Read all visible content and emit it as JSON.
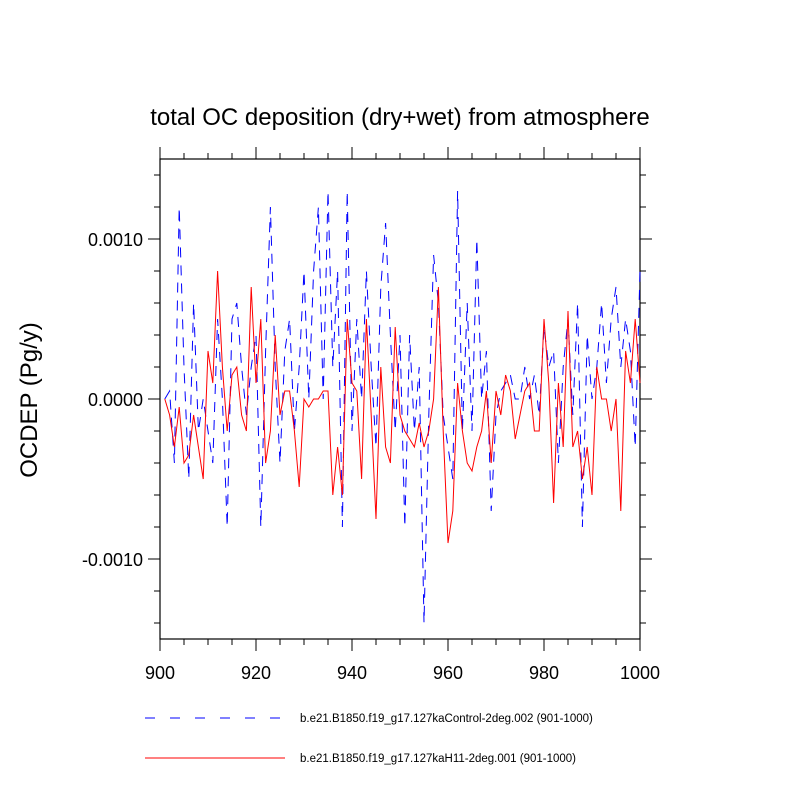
{
  "chart_data": {
    "type": "line",
    "title": "total OC deposition (dry+wet) from atmosphere",
    "xlabel": "",
    "ylabel": "OCDEP  (Pg/y)",
    "xlim": [
      900,
      1000
    ],
    "ylim": [
      -0.0015,
      0.0015
    ],
    "x_ticks": [
      900,
      920,
      940,
      960,
      980,
      1000
    ],
    "x_tick_labels": [
      "900",
      "920",
      "940",
      "960",
      "980",
      "1000"
    ],
    "y_ticks": [
      -0.001,
      0.0,
      0.001
    ],
    "y_tick_labels": [
      "-0.0010",
      "0.0000",
      "0.0010"
    ],
    "x": [
      901,
      902,
      903,
      904,
      905,
      906,
      907,
      908,
      909,
      910,
      911,
      912,
      913,
      914,
      915,
      916,
      917,
      918,
      919,
      920,
      921,
      922,
      923,
      924,
      925,
      926,
      927,
      928,
      929,
      930,
      931,
      932,
      933,
      934,
      935,
      936,
      937,
      938,
      939,
      940,
      941,
      942,
      943,
      944,
      945,
      946,
      947,
      948,
      949,
      950,
      951,
      952,
      953,
      954,
      955,
      956,
      957,
      958,
      959,
      960,
      961,
      962,
      963,
      964,
      965,
      966,
      967,
      968,
      969,
      970,
      971,
      972,
      973,
      974,
      975,
      976,
      977,
      978,
      979,
      980,
      981,
      982,
      983,
      984,
      985,
      986,
      987,
      988,
      989,
      990,
      991,
      992,
      993,
      994,
      995,
      996,
      997,
      998,
      999,
      1000
    ],
    "series": [
      {
        "name": "b.e21.B1850.f19_g17.127kaControl-2deg.002 (901-1000)",
        "color": "#0000ff",
        "style": "dashed",
        "values": [
          0.0,
          5e-05,
          -0.0004,
          0.0012,
          0.0002,
          -0.0005,
          0.0006,
          -0.0002,
          0.0,
          -0.0002,
          -0.0004,
          0.0005,
          0.0,
          -0.0008,
          0.0005,
          0.0006,
          0.0002,
          -0.0001,
          0.0002,
          0.0004,
          -0.0008,
          0.0003,
          0.0012,
          0.0002,
          -0.0004,
          0.0003,
          0.0005,
          -0.0002,
          0.0002,
          0.0008,
          0.0,
          0.0008,
          0.0012,
          0.0,
          0.0013,
          0.0002,
          0.0008,
          -0.0008,
          0.0013,
          -0.0002,
          0.0005,
          0.0,
          0.0008,
          0.0002,
          -0.0003,
          0.0007,
          0.0011,
          0.0004,
          -0.0002,
          0.0004,
          -0.0008,
          0.0004,
          -0.0002,
          0.0002,
          -0.0014,
          -0.0001,
          0.0009,
          0.0006,
          -0.0001,
          -0.0003,
          -0.0005,
          0.0013,
          -0.0002,
          0.0006,
          -0.0002,
          0.001,
          0.0,
          0.0003,
          -0.0007,
          -0.0001,
          5e-05,
          0.0001,
          0.00015,
          0.0,
          0.0,
          0.0002,
          0.0,
          0.00015,
          -0.0001,
          0.00045,
          0.0002,
          0.0003,
          -0.0004,
          0.0002,
          0.0005,
          -0.0001,
          0.0006,
          -0.0008,
          0.0004,
          0.0,
          0.0002,
          0.0006,
          0.0001,
          0.0005,
          0.0007,
          0.0002,
          0.0005,
          0.0003,
          -0.0003,
          0.0008
        ]
      },
      {
        "name": "b.e21.B1850.f19_g17.127kaH11-2deg.001 (901-1000)",
        "color": "#ff0000",
        "style": "solid",
        "values": [
          0.0,
          -0.0001,
          -0.0003,
          -5e-05,
          -0.0004,
          -0.00035,
          -0.0001,
          -0.0003,
          -0.0005,
          0.0003,
          0.0001,
          0.0008,
          0.0002,
          -0.0002,
          0.00015,
          0.0002,
          -0.0001,
          -0.0002,
          0.0007,
          0.0001,
          0.0005,
          -0.0004,
          -0.0002,
          0.0004,
          -0.0001,
          5e-05,
          5e-05,
          -0.0002,
          -0.00055,
          0.0,
          -5e-05,
          0.0,
          0.0,
          5e-05,
          5e-05,
          -0.0006,
          -0.0003,
          -0.0006,
          0.0005,
          0.0001,
          5e-05,
          -0.0005,
          0.0005,
          -0.0001,
          -0.00075,
          0.0002,
          -0.0003,
          -0.0004,
          0.00045,
          -0.0001,
          -0.0002,
          -0.00025,
          -0.0003,
          -0.00015,
          -0.0003,
          -0.0002,
          0.0,
          0.0007,
          -0.0002,
          -0.0009,
          -0.0007,
          0.0001,
          -0.0002,
          -0.0004,
          -0.00045,
          -0.0003,
          -0.0002,
          5e-05,
          -0.0004,
          5e-05,
          -0.0001,
          0.00015,
          5e-05,
          -0.00025,
          -0.0001,
          5e-05,
          0.0001,
          -0.0002,
          -0.0002,
          0.0005,
          0.0001,
          -0.00065,
          0.0001,
          -0.0003,
          0.00055,
          -0.0003,
          -0.0002,
          -0.0005,
          -0.0003,
          -0.0006,
          0.0002,
          0.0,
          0.0,
          -0.0002,
          0.0,
          -0.0007,
          0.0003,
          0.0001,
          0.0005,
          0.0001
        ]
      }
    ],
    "legend": [
      {
        "label": "b.e21.B1850.f19_g17.127kaControl-2deg.002 (901-1000)",
        "color": "#0000ff",
        "style": "dashed"
      },
      {
        "label": "b.e21.B1850.f19_g17.127kaH11-2deg.001 (901-1000)",
        "color": "#ff0000",
        "style": "solid"
      }
    ],
    "legend_position": "bottom"
  }
}
